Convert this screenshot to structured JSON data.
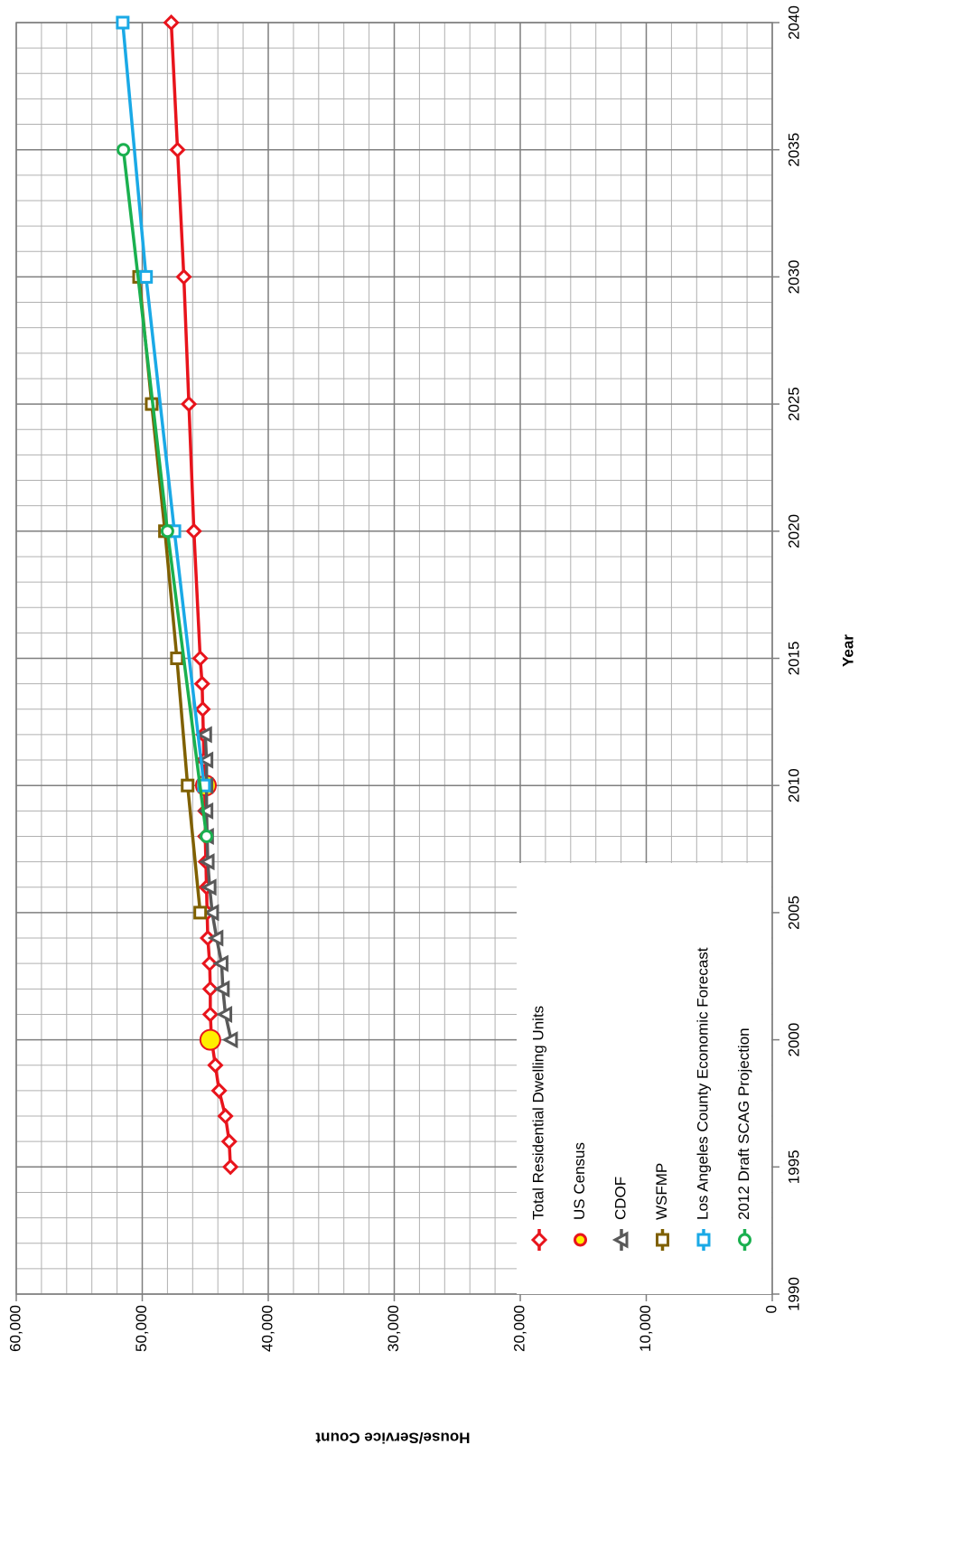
{
  "chart_data": {
    "type": "line",
    "x_label": "Year",
    "y_label": "House/Service Count",
    "xlim": [
      1990,
      2040
    ],
    "xticks": [
      1990,
      1995,
      2000,
      2005,
      2010,
      2015,
      2020,
      2025,
      2030,
      2035,
      2040
    ],
    "ylim": [
      0,
      60000
    ],
    "yticks": [
      0,
      {
        "value": 10000,
        "label": "10,000"
      },
      {
        "value": 20000,
        "label": "20,000"
      },
      {
        "value": 30000,
        "label": "30,000"
      },
      {
        "value": 40000,
        "label": "40,000"
      },
      {
        "value": 50000,
        "label": "50,000"
      },
      {
        "value": 60000,
        "label": "60,000"
      }
    ],
    "grid": true,
    "minor_grid": true,
    "legend": "lower left",
    "rotated": true,
    "series": [
      {
        "name": "Total Residential Dwelling Units",
        "color": "#e8141c",
        "marker": "diamond",
        "line": true,
        "x": [
          1995,
          1996,
          1997,
          1998,
          1999,
          2000,
          2001,
          2002,
          2003,
          2004,
          2005,
          2006,
          2007,
          2008,
          2009,
          2010,
          2011,
          2012,
          2013,
          2014,
          2015,
          2020,
          2025,
          2030,
          2035,
          2040
        ],
        "values": [
          43000,
          43100,
          43400,
          43900,
          44200,
          44500,
          44600,
          44600,
          44650,
          44800,
          44850,
          44900,
          44950,
          45000,
          45000,
          45050,
          45100,
          45150,
          45200,
          45250,
          45400,
          45900,
          46300,
          46700,
          47200,
          47700
        ]
      },
      {
        "name": "US Census",
        "color": "#e8141c",
        "fill": "#ffef00",
        "marker": "bigcircle",
        "line": false,
        "x": [
          2000,
          2010
        ],
        "values": [
          44600,
          44950
        ]
      },
      {
        "name": "CDOF",
        "color": "#595959",
        "marker": "triangle",
        "line": true,
        "x": [
          2000,
          2001,
          2002,
          2003,
          2004,
          2005,
          2006,
          2007,
          2008,
          2009,
          2010,
          2011,
          2012
        ],
        "values": [
          42950,
          43400,
          43600,
          43700,
          44100,
          44450,
          44650,
          44800,
          44850,
          44900,
          44900,
          44900,
          45000
        ]
      },
      {
        "name": "WSFMP",
        "color": "#7f6000",
        "marker": "square",
        "line": true,
        "x": [
          2005,
          2010,
          2015,
          2020,
          2025,
          2030
        ],
        "values": [
          45400,
          46400,
          47250,
          48200,
          49250,
          50250
        ]
      },
      {
        "name": "Los Angeles County Economic Forecast",
        "color": "#1aa9e6",
        "marker": "square",
        "line": true,
        "x": [
          2010,
          2020,
          2030,
          2040
        ],
        "values": [
          45100,
          47450,
          49700,
          51550
        ]
      },
      {
        "name": "2012 Draft SCAG Projection",
        "color": "#1ab04f",
        "marker": "circle",
        "line": true,
        "x": [
          2008,
          2020,
          2035
        ],
        "values": [
          44900,
          48000,
          51500
        ]
      }
    ]
  }
}
